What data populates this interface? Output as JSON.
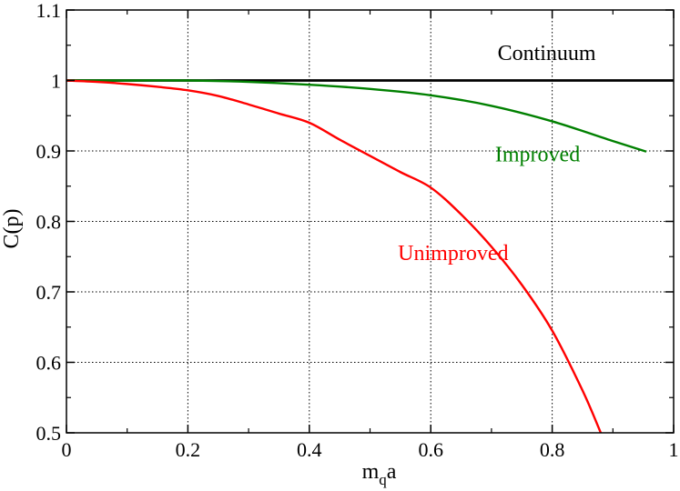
{
  "chart_data": {
    "type": "line",
    "title": "",
    "xlabel": "m",
    "xlabel_subscript": "q",
    "xlabel_suffix": "a",
    "ylabel": "C(p)",
    "xlim": [
      0,
      1
    ],
    "ylim": [
      0.5,
      1.1
    ],
    "x_ticks": [
      0,
      0.2,
      0.4,
      0.6,
      0.8,
      1
    ],
    "x_tick_labels": [
      "0",
      "0.2",
      "0.4",
      "0.6",
      "0.8",
      "1"
    ],
    "y_ticks": [
      0.5,
      0.6,
      0.7,
      0.8,
      0.9,
      1,
      1.1
    ],
    "y_tick_labels": [
      "0.5",
      "0.6",
      "0.7",
      "0.8",
      "0.9",
      "1",
      "1.1"
    ],
    "grid": true,
    "series": [
      {
        "name": "Continuum",
        "color": "#000000",
        "x": [
          0,
          1
        ],
        "y": [
          1,
          1
        ]
      },
      {
        "name": "Improved",
        "color": "#008000",
        "x": [
          0,
          0.1,
          0.2,
          0.3,
          0.4,
          0.5,
          0.6,
          0.7,
          0.8,
          0.9,
          0.955
        ],
        "y": [
          1,
          1,
          1,
          0.998,
          0.994,
          0.988,
          0.979,
          0.964,
          0.942,
          0.914,
          0.899
        ]
      },
      {
        "name": "Unimproved",
        "color": "#ff0000",
        "x": [
          0,
          0.05,
          0.1,
          0.15,
          0.2,
          0.25,
          0.3,
          0.35,
          0.4,
          0.45,
          0.5,
          0.55,
          0.6,
          0.65,
          0.7,
          0.75,
          0.8,
          0.85,
          0.88
        ],
        "y": [
          1,
          0.998,
          0.995,
          0.991,
          0.986,
          0.978,
          0.966,
          0.953,
          0.94,
          0.916,
          0.893,
          0.87,
          0.848,
          0.81,
          0.764,
          0.71,
          0.645,
          0.56,
          0.5
        ]
      }
    ],
    "annotations": [
      {
        "text": "Continuum",
        "x": 0.71,
        "y": 1.029,
        "color": "#000000"
      },
      {
        "text": "Improved",
        "x": 0.706,
        "y": 0.885,
        "color": "#008000"
      },
      {
        "text": "Unimproved",
        "x": 0.546,
        "y": 0.745,
        "color": "#ff0000"
      }
    ]
  }
}
